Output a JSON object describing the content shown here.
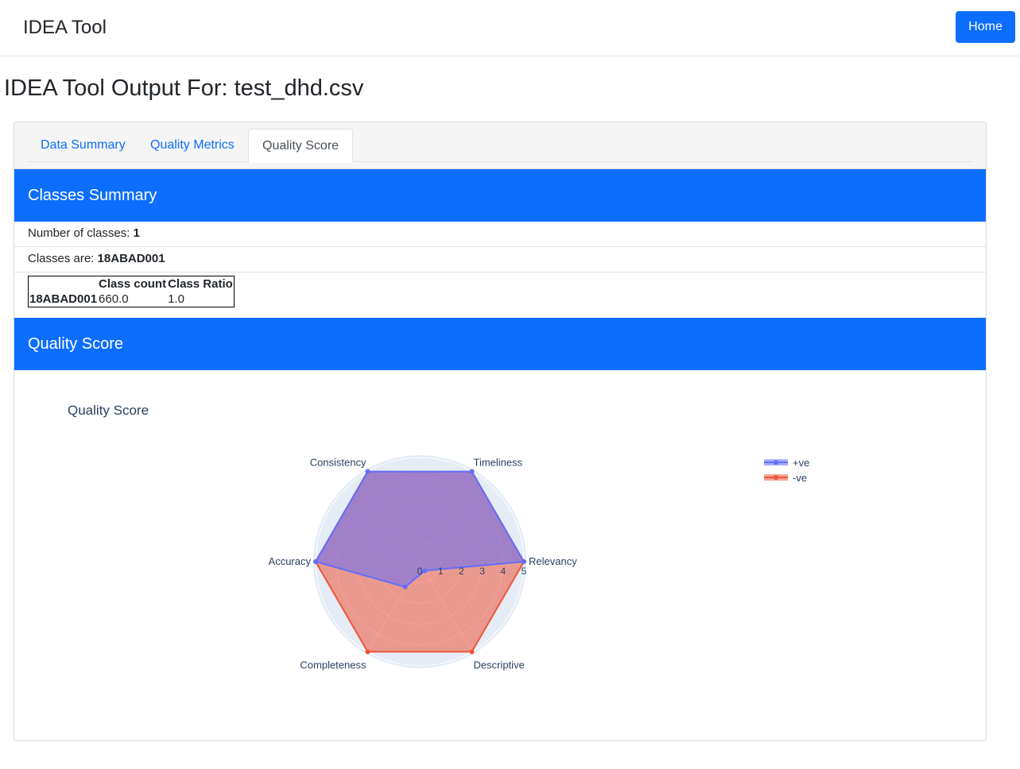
{
  "navbar": {
    "brand": "IDEA Tool",
    "home_label": "Home"
  },
  "page": {
    "title": "IDEA Tool Output For: test_dhd.csv"
  },
  "tabs": [
    {
      "label": "Data Summary",
      "active": false
    },
    {
      "label": "Quality Metrics",
      "active": false
    },
    {
      "label": "Quality Score",
      "active": true
    }
  ],
  "classes_summary": {
    "header": "Classes Summary",
    "num_label": "Number of classes: ",
    "num_value": "1",
    "classes_label": "Classes are: ",
    "classes_value": "18ABAD001",
    "table": {
      "columns": [
        "",
        "Class count",
        "Class Ratio"
      ],
      "rows": [
        {
          "name": "18ABAD001",
          "count": "660.0",
          "ratio": "1.0"
        }
      ]
    }
  },
  "quality_score": {
    "header": "Quality Score"
  },
  "colors": {
    "primary": "#0d6efd",
    "pos_series": "#636efa",
    "neg_series": "#ef553b"
  },
  "chart_data": {
    "type": "radar",
    "title": "Quality Score",
    "categories": [
      "Relevancy",
      "Timeliness",
      "Consistency",
      "Accuracy",
      "Completeness",
      "Descriptive"
    ],
    "radial_ticks": [
      "0",
      "1",
      "2",
      "3",
      "4",
      "5"
    ],
    "rlim": [
      0,
      5
    ],
    "legend_placement": "top-right",
    "series": [
      {
        "name": "+ve",
        "values": [
          5,
          5,
          5,
          5,
          1.4,
          0.5
        ]
      },
      {
        "name": "-ve",
        "values": [
          5,
          5,
          5,
          5,
          5,
          5
        ]
      }
    ]
  }
}
